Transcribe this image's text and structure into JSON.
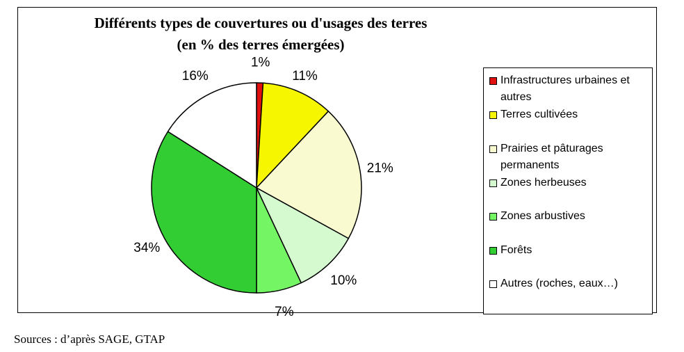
{
  "chart_data": {
    "type": "pie",
    "title": "Différents types de couvertures ou d'usages des terres",
    "subtitle": "(en % des terres émergées)",
    "legend_position": "right",
    "slices": [
      {
        "label": "Infrastructures urbaines et autres",
        "value": 1,
        "display": "1%",
        "color": "#e01010"
      },
      {
        "label": "Terres cultivées",
        "value": 11,
        "display": "11%",
        "color": "#f6f600"
      },
      {
        "label": "Prairies et pâturages permanents",
        "value": 21,
        "display": "21%",
        "color": "#fafad0"
      },
      {
        "label": "Zones herbeuses",
        "value": 10,
        "display": "10%",
        "color": "#d6fad0"
      },
      {
        "label": "Zones arbustives",
        "value": 7,
        "display": "7%",
        "color": "#74f664"
      },
      {
        "label": "Forêts",
        "value": 34,
        "display": "34%",
        "color": "#32cd32"
      },
      {
        "label": "Autres (roches, eaux…)",
        "value": 16,
        "display": "16%",
        "color": "#ffffff"
      }
    ]
  },
  "source": "Sources : d’après SAGE, GTAP"
}
